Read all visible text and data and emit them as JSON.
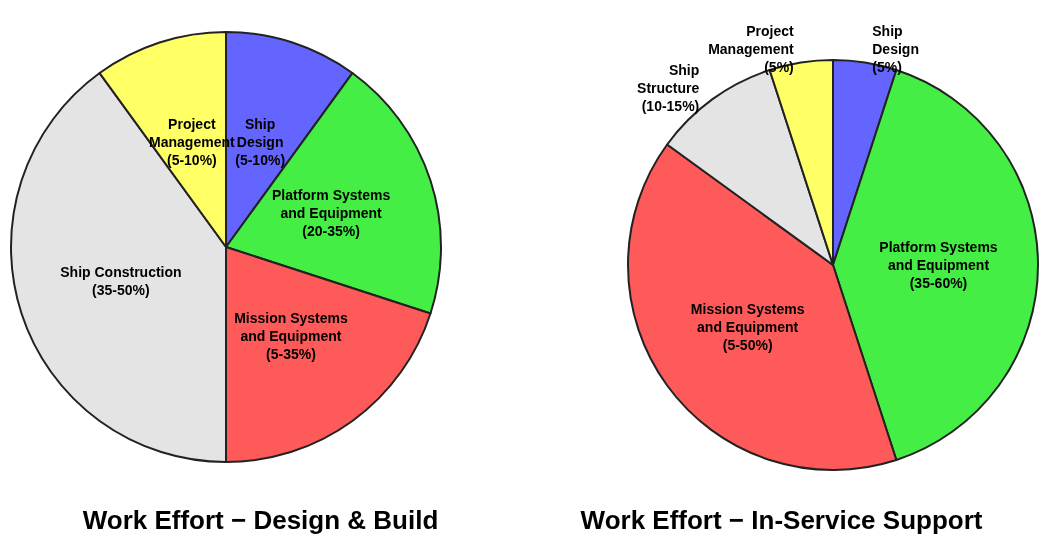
{
  "chart_data": [
    {
      "type": "pie",
      "title": "Work Effort − Design & Build",
      "categories": [
        "Ship\nDesign\n(5-10%)",
        "Platform Systems\nand Equipment\n(20-35%)",
        "Mission Systems\nand Equipment\n(5-35%)",
        "Ship Construction\n(35-50%)",
        "Project\nManagement\n(5-10%)"
      ],
      "values": [
        10,
        20,
        20,
        40,
        10
      ],
      "colors": [
        "#6464ff",
        "#44ee44",
        "#ff5a5a",
        "#e4e4e4",
        "#ffff66"
      ]
    },
    {
      "type": "pie",
      "title": "Work Effort − In-Service Support",
      "categories": [
        "Ship\nDesign\n(5%)",
        "Platform Systems\nand Equipment\n(35-60%)",
        "Mission Systems\nand Equipment\n(5-50%)",
        "Ship\nStructure\n(10-15%)",
        "Project\nManagement\n(5%)"
      ],
      "values": [
        5,
        40,
        40,
        10,
        5
      ],
      "colors": [
        "#6464ff",
        "#44ee44",
        "#ff5a5a",
        "#e4e4e4",
        "#ffff66"
      ]
    }
  ]
}
